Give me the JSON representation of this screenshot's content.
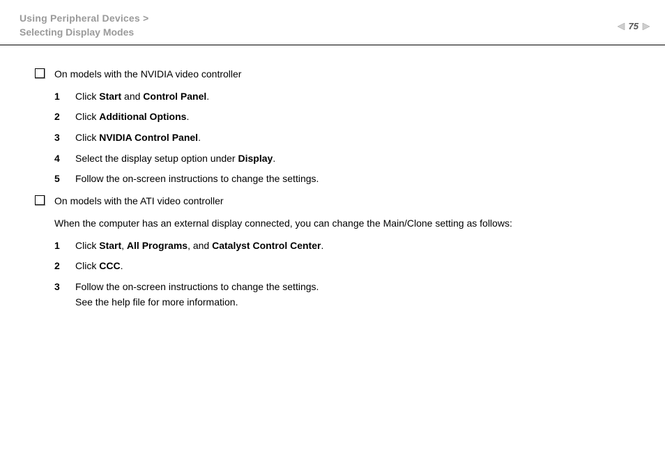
{
  "header": {
    "breadcrumb_parent": "Using Peripheral Devices",
    "breadcrumb_sep": ">",
    "breadcrumb_current": "Selecting Display Modes",
    "page_number": "75",
    "text_color": "#9a9a9a",
    "fontsize": 14
  },
  "content": {
    "fontsize": 14,
    "sections": [
      {
        "bullet_text": "On models with the NVIDIA video controller",
        "steps": [
          {
            "n": "1",
            "parts": [
              "Click ",
              {
                "b": "Start"
              },
              " and ",
              {
                "b": "Control Panel"
              },
              "."
            ]
          },
          {
            "n": "2",
            "parts": [
              "Click ",
              {
                "b": "Additional Options"
              },
              "."
            ]
          },
          {
            "n": "3",
            "parts": [
              "Click ",
              {
                "b": "NVIDIA Control Panel"
              },
              "."
            ]
          },
          {
            "n": "4",
            "parts": [
              "Select the display setup option under ",
              {
                "b": "Display"
              },
              "."
            ]
          },
          {
            "n": "5",
            "parts": [
              "Follow the on-screen instructions to change the settings."
            ]
          }
        ]
      },
      {
        "bullet_text": "On models with the ATI video controller",
        "intro": "When the computer has an external display connected, you can change the Main/Clone setting as follows:",
        "steps": [
          {
            "n": "1",
            "parts": [
              "Click ",
              {
                "b": "Start"
              },
              ", ",
              {
                "b": "All Programs"
              },
              ", and ",
              {
                "b": "Catalyst Control Center"
              },
              "."
            ]
          },
          {
            "n": "2",
            "parts": [
              "Click ",
              {
                "b": "CCC"
              },
              "."
            ]
          },
          {
            "n": "3",
            "parts": [
              "Follow the on-screen instructions to change the settings.",
              {
                "br": true
              },
              "See the help file for more information."
            ]
          }
        ]
      }
    ]
  },
  "colors": {
    "rule": "#000000",
    "text": "#000000",
    "bg": "#ffffff"
  }
}
